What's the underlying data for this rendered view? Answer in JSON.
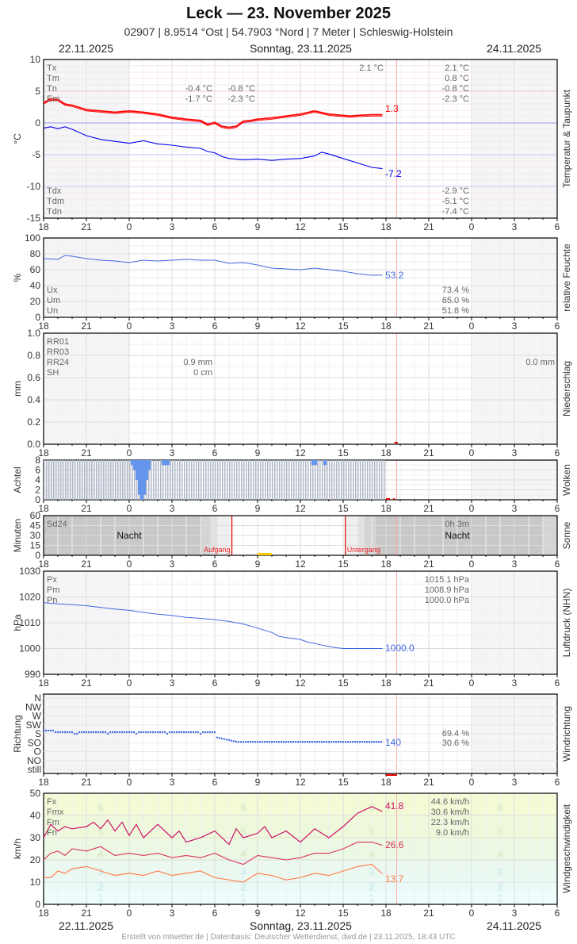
{
  "header": {
    "title": "Leck  —  23. November 2025",
    "subtitle": "02907  |  8.9514 °Ost  |  54.7903 °Nord  |  7 Meter  |  Schleswig-Holstein",
    "date_left": "22.11.2025",
    "date_center": "Sonntag, 23.11.2025",
    "date_right": "24.11.2025"
  },
  "footer": {
    "text": "Erstellt von mtwetter.de | Datenbasis: Deutscher Wetterdienst, dwd.de | 23.11.2025, 18:43 UTC"
  },
  "x_axis": {
    "tick_labels": [
      "18",
      "21",
      "0",
      "3",
      "6",
      "9",
      "12",
      "15",
      "18",
      "21",
      "0",
      "3",
      "6"
    ],
    "hours_span": 36,
    "now_hour_offset": 24.75
  },
  "colors": {
    "temperature": "#ff0000",
    "dewpoint": "#0000ee",
    "humidity": "#4169e1",
    "pressure": "#4169e1",
    "wind_dir": "#4169e1",
    "wind_fx": "#cc1166",
    "wind_fm": "#dd3355",
    "wind_fn": "#ff7744",
    "cloud_bar": "#b0b8c8",
    "cloud_fill": "#6495ed",
    "sun": "#ffcc00",
    "sun_line": "#dd0000",
    "now_line": "#ffaaaa"
  },
  "chart_data": [
    {
      "type": "line",
      "title": "Temperatur & Taupunkt",
      "ylabel": "°C",
      "ylim": [
        -15,
        10
      ],
      "yticks": [
        10,
        5,
        0,
        -5,
        -10,
        -15
      ],
      "legend_top": [
        "Tx",
        "Tm",
        "Tn",
        "Em"
      ],
      "legend_bottom": [
        "Tdx",
        "Tdm",
        "Tdn"
      ],
      "annotations_day1": {
        "Tn": "-0.4 °C",
        "Em": "-1.7 °C"
      },
      "annotations_day1b": {
        "Tn": "-0.8 °C",
        "Em": "-2.3 °C"
      },
      "annotations_day2_left": {
        "Tx": "2.1 °C"
      },
      "annotations_right": {
        "Tx": "2.1 °C",
        "Tm": "0.8 °C",
        "Tn": "-0.8 °C",
        "Em": "-2.3 °C",
        "Tdx": "-2.9 °C",
        "Tdm": "-5.1 °C",
        "Tdn": "-7.4 °C"
      },
      "last_value_temp": "1.3",
      "last_value_dew": "-7.2",
      "series": [
        {
          "name": "Temperatur",
          "x": [
            0,
            0.5,
            1,
            1.5,
            2,
            3,
            4,
            5,
            6,
            7,
            8,
            9,
            10,
            11,
            11.5,
            12,
            12.5,
            13,
            13.5,
            14,
            14.5,
            15,
            16,
            17,
            18,
            19,
            20,
            21,
            21.5,
            22,
            23,
            23.75
          ],
          "values": [
            3.2,
            3.8,
            3.7,
            3.0,
            2.8,
            2.1,
            1.9,
            1.7,
            1.9,
            1.7,
            1.4,
            0.9,
            0.6,
            0.4,
            -0.2,
            0.1,
            -0.5,
            -0.7,
            -0.5,
            0.3,
            0.4,
            0.6,
            0.8,
            1.1,
            1.4,
            1.9,
            1.4,
            1.2,
            1.1,
            1.2,
            1.3,
            1.3
          ]
        },
        {
          "name": "Taupunkt",
          "x": [
            0,
            0.5,
            1,
            1.5,
            2,
            3,
            4,
            5,
            6,
            7,
            8,
            9,
            10,
            11,
            11.5,
            12,
            12.5,
            13,
            14,
            15,
            16,
            17,
            18,
            19,
            19.5,
            20,
            21,
            22,
            23,
            23.75
          ],
          "values": [
            -0.8,
            -0.6,
            -0.9,
            -0.6,
            -1.0,
            -2.0,
            -2.6,
            -2.9,
            -3.2,
            -2.8,
            -3.3,
            -3.5,
            -3.8,
            -4.0,
            -4.5,
            -4.7,
            -5.3,
            -5.6,
            -5.8,
            -5.7,
            -5.9,
            -5.7,
            -5.6,
            -5.2,
            -4.6,
            -4.9,
            -5.6,
            -6.3,
            -7.0,
            -7.2
          ]
        }
      ]
    },
    {
      "type": "line",
      "title": "relative Feuchte",
      "ylabel": "%",
      "ylim": [
        0,
        100
      ],
      "yticks": [
        100,
        80,
        60,
        40,
        20,
        0
      ],
      "legend": [
        "Ux",
        "Um",
        "Un"
      ],
      "annotations_right": {
        "Ux": "73.4 %",
        "Um": "65.0 %",
        "Un": "51.8 %"
      },
      "last_value": "53.2",
      "series": [
        {
          "name": "Feuchte",
          "x": [
            0,
            1,
            1.5,
            2,
            3,
            4,
            5,
            6,
            7,
            8,
            9,
            10,
            11,
            12,
            13,
            14,
            15,
            16,
            17,
            18,
            19,
            20,
            21,
            22,
            23,
            23.75
          ],
          "values": [
            74,
            73,
            78,
            77,
            74,
            72,
            71,
            69,
            72,
            71,
            72,
            73,
            72,
            72,
            68,
            69,
            66,
            62,
            61,
            60,
            62,
            60,
            58,
            55,
            53,
            53.2
          ]
        }
      ]
    },
    {
      "type": "bar",
      "title": "Niederschlag",
      "ylabel": "mm",
      "ylim": [
        0,
        1.0
      ],
      "yticks": [
        "1.0",
        "0.8",
        "0.6",
        "0.4",
        "0.2",
        "0.0"
      ],
      "legend": [
        "RR01",
        "RR03",
        "RR24",
        "SH"
      ],
      "annotations_day1": {
        "RR24": "0.9 mm",
        "SH": "0 cm"
      },
      "annotations_right": {
        "RR24": "0.0 mm"
      },
      "values": []
    },
    {
      "type": "bar",
      "title": "Wolken",
      "ylabel": "Achtel",
      "ylim": [
        0,
        8
      ],
      "yticks": [
        8,
        6,
        4,
        2,
        0
      ],
      "note": "Overcast 8/8 most of time; clearing 0:10–1:30 (min ~0), small gaps around 2:15–2:45, 12:45, 13:35"
    },
    {
      "type": "bar",
      "title": "Sonne",
      "ylabel": "Minuten",
      "ylim": [
        0,
        60
      ],
      "yticks": [
        60,
        45,
        30,
        15,
        0
      ],
      "legend": [
        "Sd24"
      ],
      "night_label": "Nacht",
      "sunrise_label": "Aufgang",
      "sunset_label": "Untergang",
      "sunrise_hour_offset": 13.2,
      "sunset_hour_offset": 21.15,
      "sunshine_total": "0h 3m",
      "sunshine_bar": {
        "from": 15.0,
        "to": 16.0,
        "minutes": 3
      }
    },
    {
      "type": "line",
      "title": "Luftdruck (NHN)",
      "ylabel": "hPa",
      "ylim": [
        990,
        1030
      ],
      "yticks": [
        1030,
        1020,
        1010,
        1000,
        990
      ],
      "legend": [
        "Px",
        "Pm",
        "Pn"
      ],
      "annotations_right": {
        "Px": "1015.1 hPa",
        "Pm": "1008.9 hPa",
        "Pn": "1000.0 hPa"
      },
      "last_value": "1000.0",
      "series": [
        {
          "name": "Luftdruck",
          "x": [
            0,
            1,
            2,
            3,
            4,
            5,
            6,
            7,
            8,
            9,
            10,
            11,
            12,
            13,
            14,
            15,
            16,
            16.5,
            17,
            18,
            18.5,
            19,
            19.5,
            20,
            20.5,
            21,
            22,
            23,
            23.75
          ],
          "values": [
            1017.8,
            1017.3,
            1017,
            1016.6,
            1015.9,
            1015.3,
            1014.8,
            1014.0,
            1013.3,
            1012.8,
            1012.1,
            1011.7,
            1011.2,
            1010.5,
            1009.5,
            1007.9,
            1006.2,
            1004.7,
            1004.2,
            1003.5,
            1002.5,
            1002.0,
            1001.3,
            1000.8,
            1000.3,
            1000.0,
            1000.0,
            1000.0,
            1000.0
          ]
        }
      ]
    },
    {
      "type": "scatter",
      "title": "Windrichtung",
      "ylabel": "Richtung",
      "yticks": [
        "N",
        "NW",
        "W",
        "SW",
        "S",
        "SO",
        "O",
        "NO",
        "still"
      ],
      "annotations_right": [
        "69.4 %",
        "30.6 %"
      ],
      "last_value": "140",
      "note": "Mostly S (~175°) until 12h offset, then SO (~140°)"
    },
    {
      "type": "line",
      "title": "Windgeschwindigkeit",
      "ylabel": "km/h",
      "ylim": [
        0,
        50
      ],
      "yticks": [
        50,
        40,
        30,
        20,
        10,
        0
      ],
      "legend": [
        "Fx",
        "Fmx",
        "Fm",
        "Fn"
      ],
      "annotations_right": {
        "Fx": "44.6 km/h",
        "Fmx": "30.6 km/h",
        "Fm": "22.3 km/h",
        "Fn": "9.0 km/h"
      },
      "beaufort_labels": [
        "6",
        "5",
        "4",
        "3",
        "2",
        "1"
      ],
      "last_values": {
        "Fx": "41.8",
        "Fm": "26.6",
        "Fn": "13.7"
      },
      "series": [
        {
          "name": "Fx",
          "x": [
            0,
            0.5,
            1,
            1.5,
            2,
            3,
            3.5,
            4,
            4.5,
            5,
            5.5,
            6,
            6.5,
            7,
            7.5,
            8,
            9,
            9.5,
            10,
            11,
            12,
            13,
            13.5,
            14,
            15,
            15.5,
            16,
            17,
            18,
            19,
            20,
            21,
            22,
            23,
            23.75
          ],
          "values": [
            30,
            36,
            33,
            35,
            34,
            35,
            37,
            34,
            38,
            33,
            37,
            31,
            36,
            30,
            33,
            36,
            30,
            33,
            28,
            30,
            33,
            27,
            34,
            30,
            32,
            35,
            30,
            33,
            28,
            34,
            30,
            35,
            41,
            44,
            41.8
          ]
        },
        {
          "name": "Fm",
          "x": [
            0,
            0.5,
            1,
            1.5,
            2,
            3,
            4,
            5,
            6,
            7,
            8,
            9,
            10,
            11,
            12,
            13,
            14,
            15,
            16,
            17,
            18,
            19,
            20,
            21,
            22,
            23,
            23.75
          ],
          "values": [
            20,
            23,
            24,
            22,
            25,
            24,
            26,
            22,
            23,
            22,
            23,
            21,
            22,
            21,
            23,
            20,
            18,
            22,
            21,
            20,
            21,
            23,
            23,
            25,
            28,
            28,
            26.6
          ]
        },
        {
          "name": "Fn",
          "x": [
            0,
            0.5,
            1,
            1.5,
            2,
            3,
            4,
            5,
            6,
            7,
            8,
            9,
            10,
            11,
            12,
            13,
            14,
            15,
            16,
            17,
            18,
            19,
            20,
            21,
            22,
            23,
            23.75
          ],
          "values": [
            12,
            12,
            15,
            14,
            16,
            17,
            15,
            13,
            14,
            13,
            15,
            13,
            14,
            15,
            12,
            11,
            10,
            14,
            13,
            11,
            12,
            14,
            13,
            15,
            17,
            18,
            13.7
          ]
        }
      ]
    }
  ]
}
